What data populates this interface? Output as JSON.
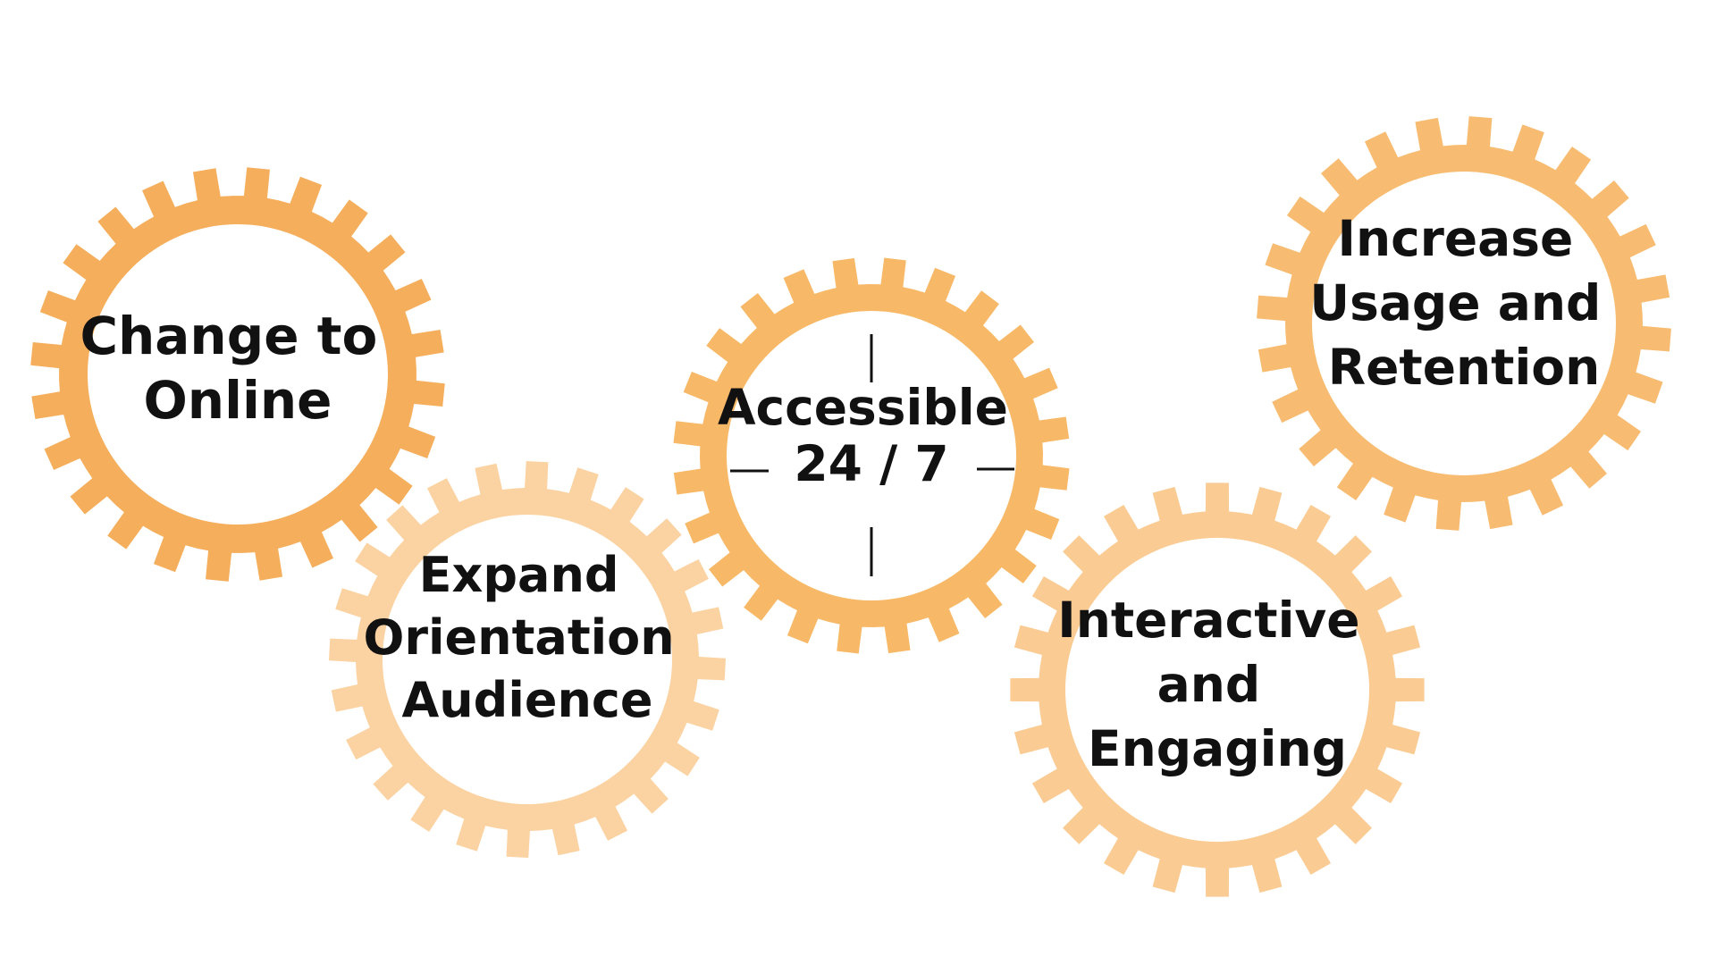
{
  "gears": [
    {
      "id": "change-to-online",
      "lines": [
        "Change to",
        "Online"
      ],
      "color": "#F5AE5C"
    },
    {
      "id": "expand-orientation-audience",
      "lines": [
        "Expand",
        "Orientation",
        "Audience"
      ],
      "color": "#FBD3A3"
    },
    {
      "id": "accessible-24-7",
      "lines": [
        "Accessible",
        "24 / 7"
      ],
      "color": "#F7B967"
    },
    {
      "id": "interactive-and-engaging",
      "lines": [
        "Interactive",
        "and",
        "Engaging"
      ],
      "color": "#FACB93"
    },
    {
      "id": "increase-usage-and-retention",
      "lines": [
        "Increase",
        "Usage and",
        "Retention"
      ],
      "color": "#F7BC72"
    }
  ]
}
